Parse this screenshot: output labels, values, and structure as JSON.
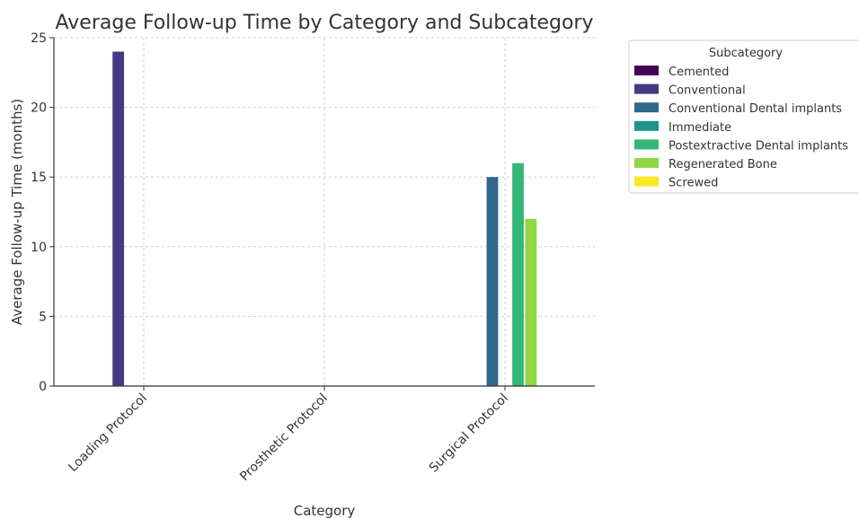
{
  "chart_data": {
    "type": "bar",
    "title": "Average Follow-up Time by Category and Subcategory",
    "xlabel": "Category",
    "ylabel": "Average Follow-up Time (months)",
    "categories": [
      "Loading Protocol",
      "Prosthetic Protocol",
      "Surgical Protocol"
    ],
    "ylim": [
      0,
      25
    ],
    "yticks": [
      0,
      5,
      10,
      15,
      20,
      25
    ],
    "grid": true,
    "legend": {
      "title": "Subcategory",
      "placement": "outside-top-right"
    },
    "series": [
      {
        "name": "Cemented",
        "color": "#440154",
        "values": [
          null,
          null,
          null
        ]
      },
      {
        "name": "Conventional",
        "color": "#443983",
        "values": [
          24,
          null,
          null
        ]
      },
      {
        "name": "Conventional Dental implants",
        "color": "#31688e",
        "values": [
          null,
          null,
          15
        ]
      },
      {
        "name": "Immediate",
        "color": "#21918c",
        "values": [
          null,
          null,
          null
        ]
      },
      {
        "name": "Postextractive Dental implants",
        "color": "#35b779",
        "values": [
          null,
          null,
          16
        ]
      },
      {
        "name": "Regenerated Bone",
        "color": "#90d743",
        "values": [
          null,
          null,
          12
        ]
      },
      {
        "name": "Screwed",
        "color": "#fde725",
        "values": [
          null,
          null,
          null
        ]
      }
    ]
  }
}
